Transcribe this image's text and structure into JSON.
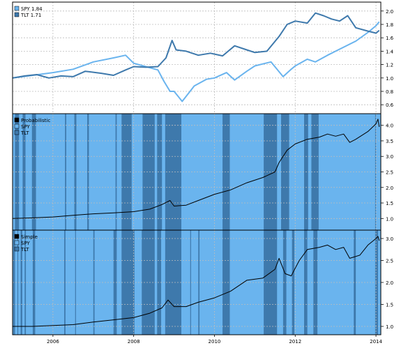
{
  "chart_data": [
    {
      "type": "line",
      "panel": "top",
      "legend": "top-left",
      "ylim": [
        0.6,
        2.0
      ],
      "yticks": [
        0.6,
        0.8,
        1.0,
        1.2,
        1.4,
        1.6,
        1.8,
        2.0
      ],
      "grid": true,
      "series": [
        {
          "name": "SPY 1.84",
          "color": "#6ab4ee",
          "points": [
            [
              2005.0,
              1.0
            ],
            [
              2005.5,
              1.04
            ],
            [
              2006.0,
              1.08
            ],
            [
              2006.5,
              1.13
            ],
            [
              2007.0,
              1.24
            ],
            [
              2007.5,
              1.3
            ],
            [
              2007.8,
              1.34
            ],
            [
              2008.0,
              1.22
            ],
            [
              2008.3,
              1.17
            ],
            [
              2008.6,
              1.12
            ],
            [
              2008.75,
              0.95
            ],
            [
              2008.9,
              0.8
            ],
            [
              2009.0,
              0.8
            ],
            [
              2009.2,
              0.65
            ],
            [
              2009.5,
              0.88
            ],
            [
              2009.8,
              0.98
            ],
            [
              2010.0,
              1.0
            ],
            [
              2010.3,
              1.08
            ],
            [
              2010.5,
              0.97
            ],
            [
              2010.8,
              1.1
            ],
            [
              2011.0,
              1.18
            ],
            [
              2011.4,
              1.24
            ],
            [
              2011.7,
              1.02
            ],
            [
              2011.9,
              1.13
            ],
            [
              2012.0,
              1.18
            ],
            [
              2012.3,
              1.28
            ],
            [
              2012.5,
              1.24
            ],
            [
              2012.8,
              1.34
            ],
            [
              2013.0,
              1.4
            ],
            [
              2013.5,
              1.55
            ],
            [
              2013.8,
              1.68
            ],
            [
              2014.0,
              1.78
            ],
            [
              2014.08,
              1.84
            ]
          ]
        },
        {
          "name": "TLT 1.71",
          "color": "#3e79ac",
          "points": [
            [
              2005.0,
              1.0
            ],
            [
              2005.3,
              1.03
            ],
            [
              2005.6,
              1.05
            ],
            [
              2005.9,
              1.0
            ],
            [
              2006.2,
              1.03
            ],
            [
              2006.5,
              1.02
            ],
            [
              2006.8,
              1.1
            ],
            [
              2007.2,
              1.07
            ],
            [
              2007.5,
              1.04
            ],
            [
              2007.8,
              1.12
            ],
            [
              2008.0,
              1.17
            ],
            [
              2008.3,
              1.16
            ],
            [
              2008.6,
              1.17
            ],
            [
              2008.8,
              1.3
            ],
            [
              2008.95,
              1.56
            ],
            [
              2009.05,
              1.42
            ],
            [
              2009.3,
              1.4
            ],
            [
              2009.6,
              1.34
            ],
            [
              2009.9,
              1.37
            ],
            [
              2010.2,
              1.33
            ],
            [
              2010.5,
              1.48
            ],
            [
              2010.8,
              1.42
            ],
            [
              2011.0,
              1.38
            ],
            [
              2011.3,
              1.4
            ],
            [
              2011.6,
              1.62
            ],
            [
              2011.8,
              1.8
            ],
            [
              2012.0,
              1.85
            ],
            [
              2012.3,
              1.82
            ],
            [
              2012.5,
              1.97
            ],
            [
              2012.7,
              1.93
            ],
            [
              2012.9,
              1.88
            ],
            [
              2013.1,
              1.85
            ],
            [
              2013.3,
              1.93
            ],
            [
              2013.5,
              1.75
            ],
            [
              2013.8,
              1.7
            ],
            [
              2014.0,
              1.67
            ],
            [
              2014.08,
              1.71
            ]
          ]
        }
      ]
    },
    {
      "type": "area",
      "panel": "middle",
      "legend": "top-left",
      "legend_entries": [
        {
          "name": "Probabilistic",
          "color": "#000000"
        },
        {
          "name": "SPY",
          "color": "#6ab4ee"
        },
        {
          "name": "TLT",
          "color": "#3e79ac"
        }
      ],
      "ylim": [
        1.0,
        4.0
      ],
      "yticks": [
        1.0,
        1.5,
        2.0,
        2.5,
        3.0,
        3.5,
        4.0
      ],
      "grid": true,
      "allocation_tlt_periods": [
        [
          2005.06,
          2005.16
        ],
        [
          2005.25,
          2005.32
        ],
        [
          2005.48,
          2005.58
        ],
        [
          2006.3,
          2006.33
        ],
        [
          2006.53,
          2006.58
        ],
        [
          2006.85,
          2006.89
        ],
        [
          2007.55,
          2007.58
        ],
        [
          2007.7,
          2007.95
        ],
        [
          2008.22,
          2008.52
        ],
        [
          2008.58,
          2008.7
        ],
        [
          2008.78,
          2009.18
        ],
        [
          2010.2,
          2010.38
        ],
        [
          2011.22,
          2011.55
        ],
        [
          2011.65,
          2011.85
        ],
        [
          2012.22,
          2012.32
        ],
        [
          2012.4,
          2012.58
        ],
        [
          2013.98,
          2014.0
        ]
      ],
      "line": {
        "name": "Probabilistic",
        "color": "#000000",
        "points": [
          [
            2005.0,
            1.0
          ],
          [
            2005.5,
            1.02
          ],
          [
            2006.0,
            1.05
          ],
          [
            2006.5,
            1.1
          ],
          [
            2007.0,
            1.15
          ],
          [
            2007.5,
            1.18
          ],
          [
            2008.0,
            1.22
          ],
          [
            2008.4,
            1.3
          ],
          [
            2008.7,
            1.45
          ],
          [
            2008.9,
            1.58
          ],
          [
            2009.0,
            1.4
          ],
          [
            2009.3,
            1.43
          ],
          [
            2009.6,
            1.58
          ],
          [
            2010.0,
            1.78
          ],
          [
            2010.4,
            1.92
          ],
          [
            2010.8,
            2.15
          ],
          [
            2011.2,
            2.32
          ],
          [
            2011.5,
            2.5
          ],
          [
            2011.6,
            2.8
          ],
          [
            2011.8,
            3.2
          ],
          [
            2012.0,
            3.4
          ],
          [
            2012.3,
            3.55
          ],
          [
            2012.6,
            3.62
          ],
          [
            2012.8,
            3.72
          ],
          [
            2013.0,
            3.65
          ],
          [
            2013.2,
            3.72
          ],
          [
            2013.35,
            3.45
          ],
          [
            2013.5,
            3.55
          ],
          [
            2013.8,
            3.8
          ],
          [
            2014.0,
            4.05
          ],
          [
            2014.05,
            4.2
          ],
          [
            2014.08,
            3.95
          ]
        ]
      }
    },
    {
      "type": "area",
      "panel": "bottom",
      "legend": "top-left",
      "legend_entries": [
        {
          "name": "Simple",
          "color": "#000000"
        },
        {
          "name": "SPY",
          "color": "#6ab4ee"
        },
        {
          "name": "TLT",
          "color": "#3e79ac"
        }
      ],
      "ylim": [
        1.0,
        3.0
      ],
      "yticks": [
        1.0,
        1.5,
        2.0,
        2.5,
        3.0
      ],
      "grid": true,
      "allocation_tlt_periods": [
        [
          2005.02,
          2005.06
        ],
        [
          2005.12,
          2005.14
        ],
        [
          2005.2,
          2005.24
        ],
        [
          2005.3,
          2005.33
        ],
        [
          2005.5,
          2005.56
        ],
        [
          2006.28,
          2006.31
        ],
        [
          2006.55,
          2006.57
        ],
        [
          2007.0,
          2007.03
        ],
        [
          2007.5,
          2007.58
        ],
        [
          2007.7,
          2008.02
        ],
        [
          2008.2,
          2008.52
        ],
        [
          2008.58,
          2008.68
        ],
        [
          2008.78,
          2009.18
        ],
        [
          2009.4,
          2009.42
        ],
        [
          2009.6,
          2009.63
        ],
        [
          2010.2,
          2010.38
        ],
        [
          2011.22,
          2011.55
        ],
        [
          2011.7,
          2011.78
        ],
        [
          2011.92,
          2011.98
        ],
        [
          2012.22,
          2012.3
        ],
        [
          2012.45,
          2012.55
        ],
        [
          2013.45,
          2013.5
        ],
        [
          2013.98,
          2014.05
        ]
      ],
      "line": {
        "name": "Simple",
        "color": "#000000",
        "points": [
          [
            2005.0,
            1.0
          ],
          [
            2005.5,
            1.0
          ],
          [
            2006.0,
            1.02
          ],
          [
            2006.5,
            1.04
          ],
          [
            2007.0,
            1.1
          ],
          [
            2007.5,
            1.15
          ],
          [
            2008.0,
            1.2
          ],
          [
            2008.4,
            1.3
          ],
          [
            2008.7,
            1.42
          ],
          [
            2008.85,
            1.6
          ],
          [
            2009.0,
            1.45
          ],
          [
            2009.3,
            1.45
          ],
          [
            2009.6,
            1.55
          ],
          [
            2010.0,
            1.65
          ],
          [
            2010.4,
            1.8
          ],
          [
            2010.8,
            2.05
          ],
          [
            2011.2,
            2.1
          ],
          [
            2011.5,
            2.3
          ],
          [
            2011.6,
            2.55
          ],
          [
            2011.75,
            2.2
          ],
          [
            2011.9,
            2.15
          ],
          [
            2012.1,
            2.5
          ],
          [
            2012.3,
            2.75
          ],
          [
            2012.6,
            2.8
          ],
          [
            2012.8,
            2.85
          ],
          [
            2013.0,
            2.75
          ],
          [
            2013.2,
            2.8
          ],
          [
            2013.35,
            2.55
          ],
          [
            2013.6,
            2.62
          ],
          [
            2013.8,
            2.85
          ],
          [
            2014.0,
            3.0
          ],
          [
            2014.05,
            3.05
          ],
          [
            2014.08,
            2.95
          ]
        ]
      }
    }
  ],
  "x_axis": {
    "range": [
      2005.0,
      2014.12
    ],
    "tick_labels": [
      {
        "label": "2006",
        "value": 2006.0
      },
      {
        "label": "2008",
        "value": 2008.0
      },
      {
        "label": "2010",
        "value": 2010.0
      },
      {
        "label": "2012",
        "value": 2012.0
      },
      {
        "label": "2014",
        "value": 2014.0
      }
    ]
  },
  "colors": {
    "spy": "#6ab4ee",
    "tlt": "#3e79ac",
    "strategy": "#000000"
  }
}
